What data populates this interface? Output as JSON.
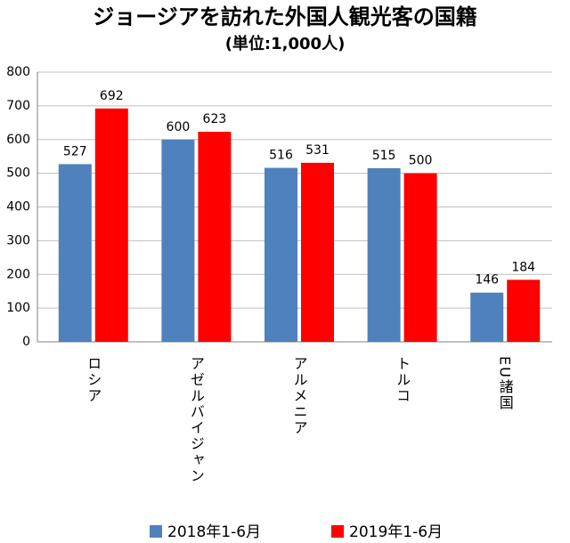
{
  "chart_data": {
    "type": "bar",
    "title": "ジョージアを訪れた外国人観光客の国籍",
    "subtitle": "(単位:1,000人)",
    "categories": [
      "ロシア",
      "アゼルバイジャン",
      "アルメニア",
      "トルコ",
      "EU諸国"
    ],
    "series": [
      {
        "name": "2018年1-6月",
        "color": "#4f81bd",
        "values": [
          527,
          600,
          516,
          515,
          146
        ]
      },
      {
        "name": "2019年1-6月",
        "color": "#ff0000",
        "values": [
          692,
          623,
          531,
          500,
          184
        ]
      }
    ],
    "ylim": [
      0,
      800
    ],
    "yticks": [
      0,
      100,
      200,
      300,
      400,
      500,
      600,
      700,
      800
    ],
    "grid": true,
    "legend": "bottom"
  }
}
